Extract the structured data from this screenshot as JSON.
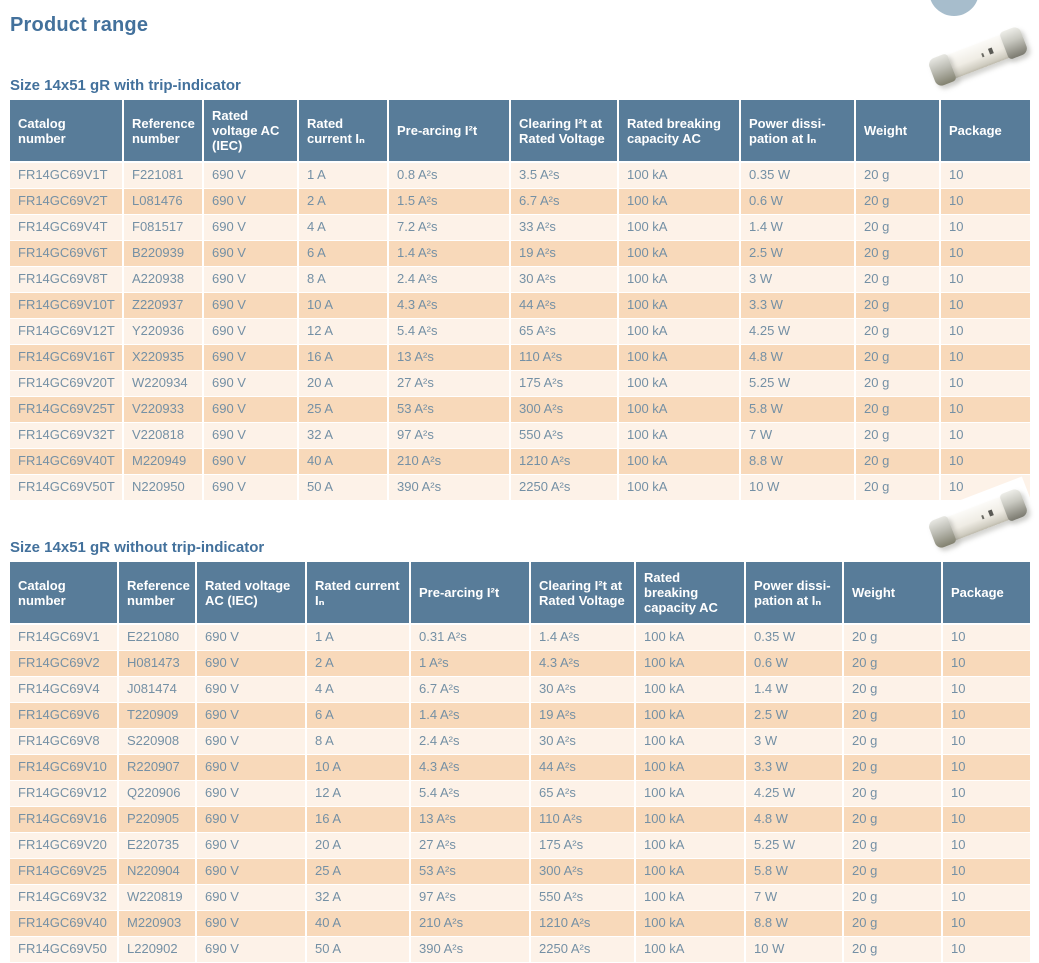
{
  "page": {
    "title": "Product range"
  },
  "decorations": {
    "corner_circle": "corner-circle",
    "fuse_image": "fuse-cartridge-photo"
  },
  "colors": {
    "title_text": "#43719c",
    "header_bg": "#587c99",
    "header_text": "#ffffff",
    "row_odd_bg": "#fdf2e8",
    "row_even_bg": "#f8d9ba",
    "body_text": "#7490a5",
    "circle": "#a7bdcc"
  },
  "columns": [
    "Catalog number",
    "Reference number",
    "Rated voltage AC (IEC)",
    "Rated current Iₙ",
    "Pre-arcing I²t",
    "Clearing I²t at Rated Voltage",
    "Rated breaking capacity AC",
    "Power dissi-pation at Iₙ",
    "Weight",
    "Package"
  ],
  "tables": [
    {
      "title": "Size 14x51 gR with trip-indicator",
      "rows": [
        [
          "FR14GC69V1T",
          "F221081",
          "690 V",
          "1 A",
          "0.8 A²s",
          "3.5 A²s",
          "100 kA",
          "0.35 W",
          "20 g",
          "10"
        ],
        [
          "FR14GC69V2T",
          "L081476",
          "690 V",
          "2 A",
          "1.5 A²s",
          "6.7 A²s",
          "100 kA",
          "0.6 W",
          "20 g",
          "10"
        ],
        [
          "FR14GC69V4T",
          "F081517",
          "690 V",
          "4 A",
          "7.2 A²s",
          "33 A²s",
          "100 kA",
          "1.4 W",
          "20 g",
          "10"
        ],
        [
          "FR14GC69V6T",
          "B220939",
          "690 V",
          "6 A",
          "1.4 A²s",
          "19 A²s",
          "100 kA",
          "2.5 W",
          "20 g",
          "10"
        ],
        [
          "FR14GC69V8T",
          "A220938",
          "690 V",
          "8 A",
          "2.4 A²s",
          "30 A²s",
          "100 kA",
          "3 W",
          "20 g",
          "10"
        ],
        [
          "FR14GC69V10T",
          "Z220937",
          "690 V",
          "10 A",
          "4.3 A²s",
          "44 A²s",
          "100 kA",
          "3.3 W",
          "20 g",
          "10"
        ],
        [
          "FR14GC69V12T",
          "Y220936",
          "690 V",
          "12 A",
          "5.4 A²s",
          "65 A²s",
          "100 kA",
          "4.25 W",
          "20 g",
          "10"
        ],
        [
          "FR14GC69V16T",
          "X220935",
          "690 V",
          "16 A",
          "13 A²s",
          "110 A²s",
          "100 kA",
          "4.8 W",
          "20 g",
          "10"
        ],
        [
          "FR14GC69V20T",
          "W220934",
          "690 V",
          "20 A",
          "27 A²s",
          "175 A²s",
          "100 kA",
          "5.25 W",
          "20 g",
          "10"
        ],
        [
          "FR14GC69V25T",
          "V220933",
          "690 V",
          "25 A",
          "53 A²s",
          "300 A²s",
          "100 kA",
          "5.8 W",
          "20 g",
          "10"
        ],
        [
          "FR14GC69V32T",
          "V220818",
          "690 V",
          "32 A",
          "97 A²s",
          "550 A²s",
          "100 kA",
          "7 W",
          "20 g",
          "10"
        ],
        [
          "FR14GC69V40T",
          "M220949",
          "690 V",
          "40 A",
          "210 A²s",
          "1210 A²s",
          "100 kA",
          "8.8 W",
          "20 g",
          "10"
        ],
        [
          "FR14GC69V50T",
          "N220950",
          "690 V",
          "50 A",
          "390 A²s",
          "2250 A²s",
          "100 kA",
          "10 W",
          "20 g",
          "10"
        ]
      ]
    },
    {
      "title": "Size 14x51 gR without trip-indicator",
      "rows": [
        [
          "FR14GC69V1",
          "E221080",
          "690 V",
          "1 A",
          "0.31 A²s",
          "1.4 A²s",
          "100 kA",
          "0.35 W",
          "20 g",
          "10"
        ],
        [
          "FR14GC69V2",
          "H081473",
          "690 V",
          "2 A",
          "1 A²s",
          "4.3 A²s",
          "100 kA",
          "0.6 W",
          "20 g",
          "10"
        ],
        [
          "FR14GC69V4",
          "J081474",
          "690 V",
          "4 A",
          "6.7 A²s",
          "30 A²s",
          "100 kA",
          "1.4 W",
          "20 g",
          "10"
        ],
        [
          "FR14GC69V6",
          "T220909",
          "690 V",
          "6 A",
          "1.4 A²s",
          "19 A²s",
          "100 kA",
          "2.5 W",
          "20 g",
          "10"
        ],
        [
          "FR14GC69V8",
          "S220908",
          "690 V",
          "8 A",
          "2.4 A²s",
          "30 A²s",
          "100 kA",
          "3 W",
          "20 g",
          "10"
        ],
        [
          "FR14GC69V10",
          "R220907",
          "690 V",
          "10 A",
          "4.3 A²s",
          "44 A²s",
          "100 kA",
          "3.3 W",
          "20 g",
          "10"
        ],
        [
          "FR14GC69V12",
          "Q220906",
          "690 V",
          "12 A",
          "5.4 A²s",
          "65 A²s",
          "100 kA",
          "4.25 W",
          "20 g",
          "10"
        ],
        [
          "FR14GC69V16",
          "P220905",
          "690 V",
          "16 A",
          "13 A²s",
          "110 A²s",
          "100 kA",
          "4.8 W",
          "20 g",
          "10"
        ],
        [
          "FR14GC69V20",
          "E220735",
          "690 V",
          "20 A",
          "27 A²s",
          "175 A²s",
          "100 kA",
          "5.25 W",
          "20 g",
          "10"
        ],
        [
          "FR14GC69V25",
          "N220904",
          "690 V",
          "25 A",
          "53 A²s",
          "300 A²s",
          "100 kA",
          "5.8 W",
          "20 g",
          "10"
        ],
        [
          "FR14GC69V32",
          "W220819",
          "690 V",
          "32 A",
          "97 A²s",
          "550 A²s",
          "100 kA",
          "7 W",
          "20 g",
          "10"
        ],
        [
          "FR14GC69V40",
          "M220903",
          "690 V",
          "40 A",
          "210 A²s",
          "1210 A²s",
          "100 kA",
          "8.8 W",
          "20 g",
          "10"
        ],
        [
          "FR14GC69V50",
          "L220902",
          "690 V",
          "50 A",
          "390 A²s",
          "2250 A²s",
          "100 kA",
          "10 W",
          "20 g",
          "10"
        ]
      ]
    }
  ]
}
